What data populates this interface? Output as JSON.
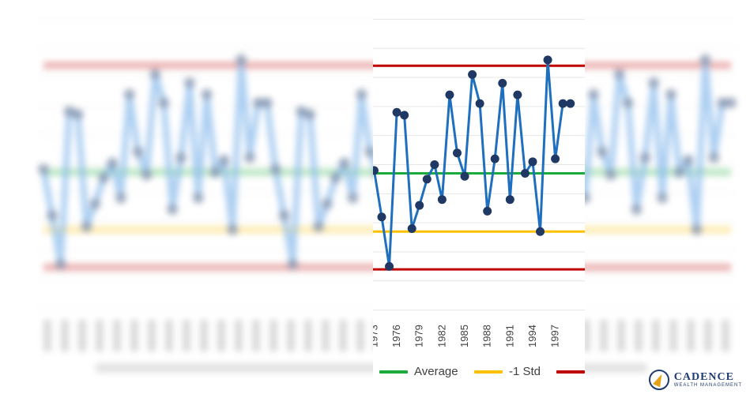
{
  "chart_data": {
    "type": "line",
    "x_label_ticks": [
      "1973",
      "1976",
      "1979",
      "1982",
      "1985",
      "1988",
      "1991",
      "1994",
      "1997"
    ],
    "x": [
      1973,
      1974,
      1975,
      1976,
      1977,
      1978,
      1979,
      1980,
      1981,
      1982,
      1983,
      1984,
      1985,
      1986,
      1987,
      1988,
      1989,
      1990,
      1991,
      1992,
      1993,
      1994,
      1995,
      1996,
      1997,
      1998,
      1999
    ],
    "series": [
      {
        "name": "",
        "color": "#1f6fbf",
        "values": [
          0.08,
          -0.08,
          -0.25,
          0.28,
          0.27,
          -0.12,
          -0.04,
          0.05,
          0.1,
          -0.02,
          0.34,
          0.14,
          0.06,
          0.41,
          0.31,
          -0.06,
          0.12,
          0.38,
          -0.02,
          0.34,
          0.07,
          0.11,
          -0.13,
          0.46,
          0.12,
          0.31,
          0.31
        ]
      },
      {
        "name": "Average",
        "color": "#1aab3c",
        "constant": 0.07
      },
      {
        "name": "-1 Std",
        "color": "#ffc000",
        "constant": -0.13
      },
      {
        "name": "",
        "color": "#c00000",
        "constant": 0.44
      },
      {
        "name": "",
        "color": "#c00000",
        "constant": -0.26
      }
    ],
    "ylim": [
      -0.42,
      0.62
    ],
    "grid": true,
    "legend_position": "bottom",
    "legend_labels": [
      "Average",
      "-1 Std"
    ]
  },
  "brand": {
    "name": "CADENCE",
    "tagline": "WEALTH MANAGEMENT",
    "colors": {
      "navy": "#1f3b73",
      "gold": "#e7a317"
    }
  }
}
